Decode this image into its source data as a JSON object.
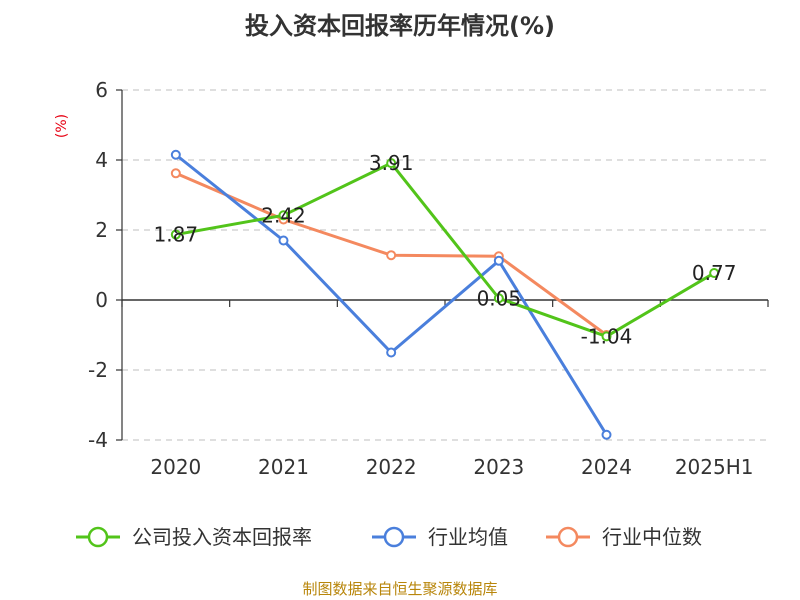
{
  "chart_data": {
    "type": "line",
    "title": "投入资本回报率历年情况(%)",
    "ylabel": "(%)",
    "categories": [
      "2020",
      "2021",
      "2022",
      "2023",
      "2024",
      "2025H1"
    ],
    "y_ticks": [
      "6",
      "4",
      "2",
      "0",
      "-2",
      "-4"
    ],
    "ylim": [
      -4,
      6
    ],
    "grid": "horizontal dashed",
    "legend_position": "bottom",
    "series": [
      {
        "name": "公司投入资本回报率",
        "color": "#52c41a",
        "values": [
          1.87,
          2.42,
          3.91,
          0.05,
          -1.04,
          0.77
        ],
        "labels": [
          "1.87",
          "2.42",
          "3.91",
          "0.05",
          "-1.04",
          "0.77"
        ]
      },
      {
        "name": "行业均值",
        "color": "#4a7fdc",
        "values": [
          4.15,
          1.7,
          -1.5,
          1.12,
          -3.85,
          null
        ]
      },
      {
        "name": "行业中位数",
        "color": "#f4895f",
        "values": [
          3.62,
          2.3,
          1.28,
          1.25,
          -1.0,
          null
        ]
      }
    ]
  },
  "source": "制图数据来自恒生聚源数据库"
}
